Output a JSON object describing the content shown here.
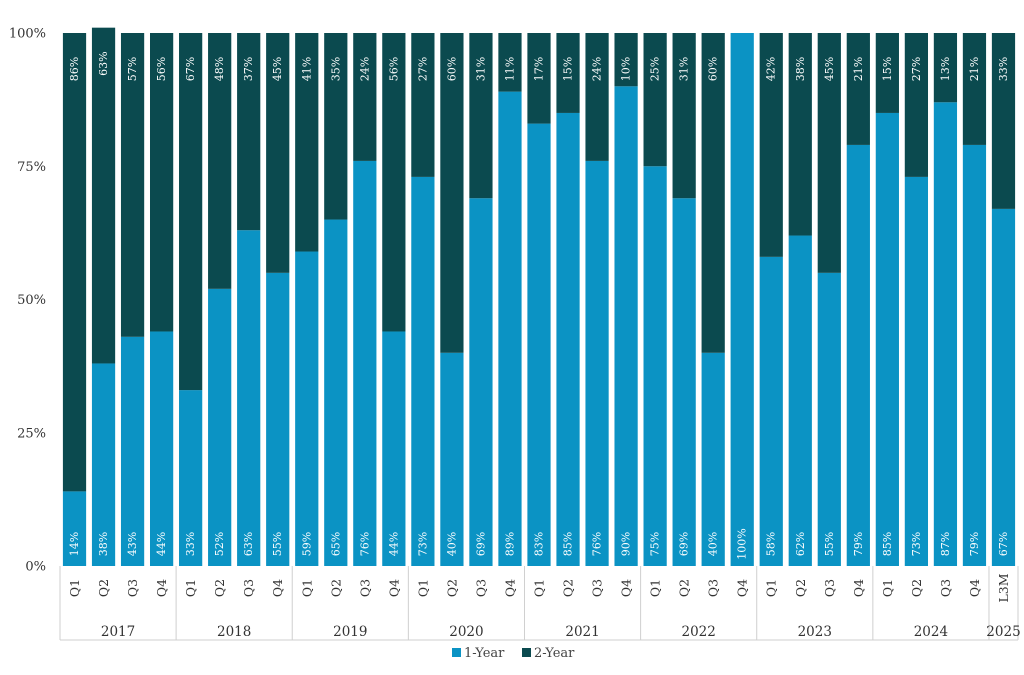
{
  "chart_data": {
    "type": "bar",
    "stacked": true,
    "title": "",
    "xlabel": "",
    "ylabel": "",
    "ylim": [
      0,
      100
    ],
    "y_ticks": [
      "0%",
      "25%",
      "50%",
      "75%",
      "100%"
    ],
    "y_tick_values": [
      0,
      25,
      50,
      75,
      100
    ],
    "legend_position": "bottom",
    "categories": [
      "Q1",
      "Q2",
      "Q3",
      "Q4",
      "Q1",
      "Q2",
      "Q3",
      "Q4",
      "Q1",
      "Q2",
      "Q3",
      "Q4",
      "Q1",
      "Q2",
      "Q3",
      "Q4",
      "Q1",
      "Q2",
      "Q3",
      "Q4",
      "Q1",
      "Q2",
      "Q3",
      "Q4",
      "Q1",
      "Q2",
      "Q3",
      "Q4",
      "Q1",
      "Q2",
      "Q3",
      "Q4",
      "L3M"
    ],
    "groups": [
      {
        "label": "2017",
        "count": 4
      },
      {
        "label": "2018",
        "count": 4
      },
      {
        "label": "2019",
        "count": 4
      },
      {
        "label": "2020",
        "count": 4
      },
      {
        "label": "2021",
        "count": 4
      },
      {
        "label": "2022",
        "count": 4
      },
      {
        "label": "2023",
        "count": 4
      },
      {
        "label": "2024",
        "count": 4
      },
      {
        "label": "2025",
        "count": 1
      }
    ],
    "series": [
      {
        "name": "1-Year",
        "color": "#0b93c4",
        "values": [
          14,
          38,
          43,
          44,
          33,
          52,
          63,
          55,
          59,
          65,
          76,
          44,
          73,
          40,
          69,
          89,
          83,
          85,
          76,
          90,
          75,
          69,
          40,
          100,
          58,
          62,
          55,
          79,
          85,
          73,
          87,
          79,
          67
        ]
      },
      {
        "name": "2-Year",
        "color": "#0b4a4f",
        "values": [
          86,
          63,
          57,
          56,
          67,
          48,
          37,
          45,
          41,
          35,
          24,
          56,
          27,
          60,
          31,
          11,
          17,
          15,
          24,
          10,
          25,
          31,
          60,
          0,
          42,
          38,
          45,
          21,
          15,
          27,
          13,
          21,
          33
        ]
      }
    ]
  }
}
